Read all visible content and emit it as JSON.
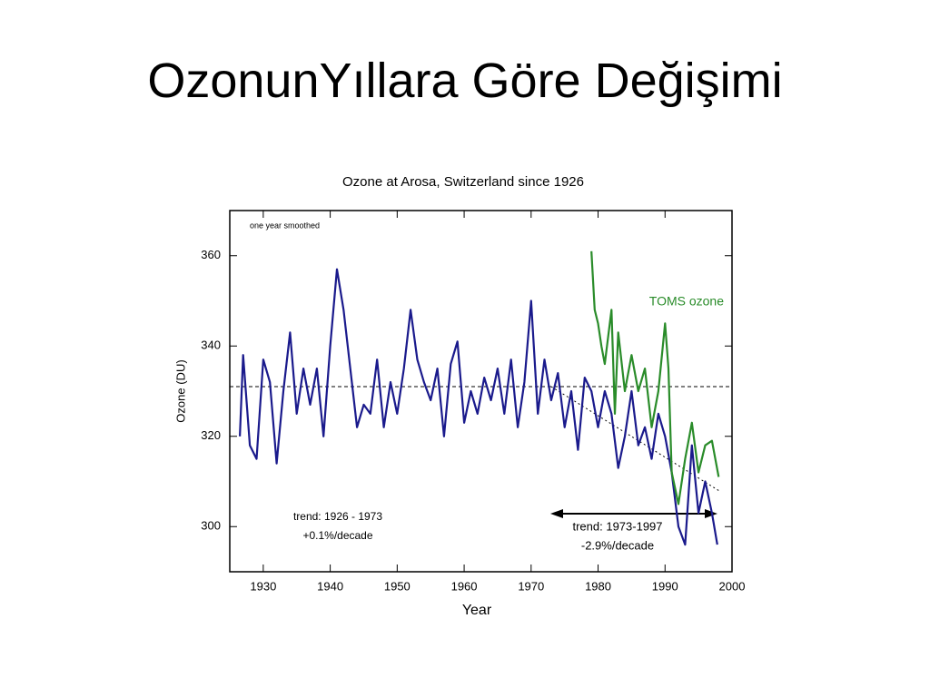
{
  "slide": {
    "title": "OzonunYıllara Göre Değişimi"
  },
  "chart_data": {
    "type": "line",
    "title": "Ozone at Arosa, Switzerland since 1926",
    "x_label": "Year",
    "y_label": "Ozone (DU)",
    "xlim": [
      1925,
      2000
    ],
    "ylim": [
      290,
      370
    ],
    "xticks": [
      1930,
      1940,
      1950,
      1960,
      1970,
      1980,
      1990,
      2000
    ],
    "yticks": [
      300,
      320,
      340,
      360
    ],
    "annotations": [
      "one year smoothed",
      "trend: 1926 - 1973",
      "+0.1%/decade",
      "trend: 1973-1997",
      "-2.9%/decade"
    ],
    "reference_lines": [
      {
        "x": [
          1925,
          2000
        ],
        "y": [
          331,
          331
        ]
      },
      {
        "x": [
          1973,
          1998
        ],
        "y": [
          331,
          308
        ]
      }
    ],
    "series": [
      {
        "color": "#1a1a8c",
        "x": [
          1926.5,
          1927,
          1928,
          1929,
          1930,
          1931,
          1932,
          1933,
          1934,
          1935,
          1936,
          1937,
          1938,
          1939,
          1940,
          1941,
          1942,
          1943,
          1944,
          1945,
          1946,
          1947,
          1948,
          1949,
          1950,
          1951,
          1952,
          1953,
          1954,
          1955,
          1956,
          1957,
          1958,
          1959,
          1960,
          1961,
          1962,
          1963,
          1964,
          1965,
          1966,
          1967,
          1968,
          1969,
          1970,
          1971,
          1972,
          1973,
          1974,
          1975,
          1976,
          1977,
          1978,
          1979,
          1980,
          1981,
          1982,
          1983,
          1984,
          1985,
          1986,
          1987,
          1988,
          1989,
          1990,
          1991,
          1992,
          1993,
          1994,
          1995,
          1996,
          1997,
          1997.8
        ],
        "values": [
          320,
          338,
          318,
          315,
          337,
          332,
          314,
          330,
          343,
          325,
          335,
          327,
          335,
          320,
          340,
          357,
          348,
          335,
          322,
          327,
          325,
          337,
          322,
          332,
          325,
          335,
          348,
          337,
          332,
          328,
          335,
          320,
          336,
          341,
          323,
          330,
          325,
          333,
          328,
          335,
          325,
          337,
          322,
          332,
          350,
          325,
          337,
          328,
          334,
          322,
          330,
          317,
          333,
          330,
          322,
          330,
          325,
          313,
          320,
          330,
          318,
          322,
          315,
          325,
          320,
          312,
          300,
          296,
          318,
          303,
          310,
          303,
          296
        ]
      },
      {
        "name": "TOMS ozone",
        "color": "#2a8c2a",
        "x": [
          1979,
          1979.5,
          1980,
          1980.5,
          1981,
          1982,
          1982.5,
          1983,
          1984,
          1985,
          1986,
          1987,
          1988,
          1989,
          1990,
          1990.5,
          1991,
          1992,
          1993,
          1994,
          1995,
          1996,
          1997,
          1998
        ],
        "values": [
          361,
          348,
          345,
          340,
          336,
          348,
          325,
          343,
          330,
          338,
          330,
          335,
          322,
          330,
          345,
          335,
          312,
          305,
          315,
          323,
          312,
          318,
          319,
          311
        ]
      }
    ]
  }
}
